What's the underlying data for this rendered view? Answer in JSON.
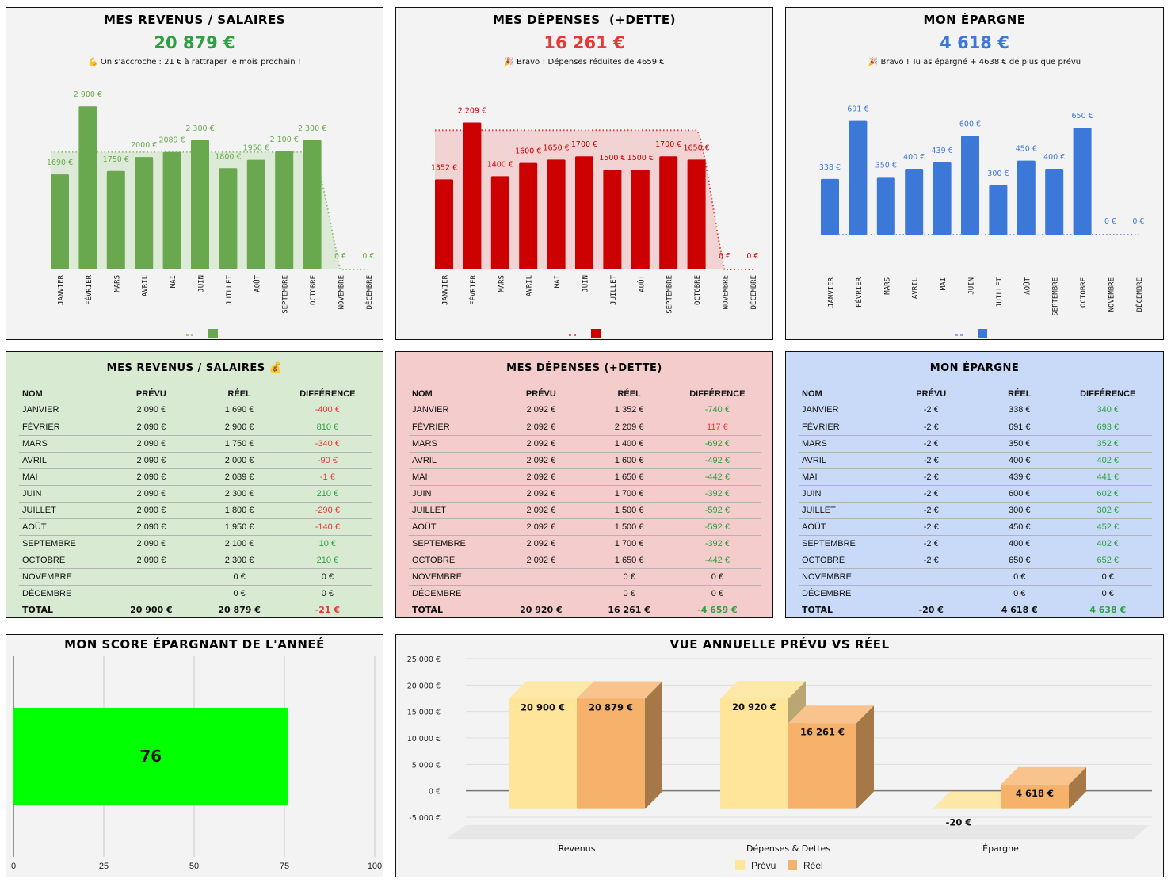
{
  "months": [
    "JANVIER",
    "FÉVRIER",
    "MARS",
    "AVRIL",
    "MAI",
    "JUIN",
    "JUILLET",
    "AOÛT",
    "SEPTEMBRE",
    "OCTOBRE",
    "NOVEMBRE",
    "DÉCEMBRE"
  ],
  "colors": {
    "income": "#6aa84f",
    "income_area": "#d9e8d2",
    "income_text": "#2ea043",
    "expense": "#cc0000",
    "expense_area": "#f1cccc",
    "expense_text": "#e53935",
    "savings": "#3c78d8",
    "savings_text": "#3c78d8",
    "score": "#00ff00",
    "planned": "#ffe599",
    "actual": "#f6b26b",
    "pos": "#2ea043",
    "neg": "#e53935",
    "tbl_income_bg": "#d9ead3",
    "tbl_expense_bg": "#f4cccc",
    "tbl_savings_bg": "#c9daf8"
  },
  "income_card": {
    "title": "MES REVENUS / SALAIRES",
    "total": "20 879 €",
    "message": "💪 On s'accroche : 21 € à rattraper le mois prochain !"
  },
  "expense_card": {
    "title": "MES DÉPENSES  (+DETTE)",
    "total": "16 261 €",
    "message": "🎉 Bravo ! Dépenses réduites de 4659 €"
  },
  "savings_card": {
    "title": "MON ÉPARGNE",
    "total": "4 618 €",
    "message": "🎉 Bravo ! Tu as épargné + 4638 € de plus que prévu"
  },
  "chart_data": [
    {
      "type": "bar",
      "title": "MES REVENUS / SALAIRES",
      "categories": [
        "JANVIER",
        "FÉVRIER",
        "MARS",
        "AVRIL",
        "MAI",
        "JUIN",
        "JUILLET",
        "AOÛT",
        "SEPTEMBRE",
        "OCTOBRE",
        "NOVEMBRE",
        "DÉCEMBRE"
      ],
      "series": [
        {
          "name": "Réel",
          "kind": "bar",
          "values": [
            1690,
            2900,
            1750,
            2000,
            2089,
            2300,
            1800,
            1950,
            2100,
            2300,
            0,
            0
          ]
        },
        {
          "name": "Prévu",
          "kind": "area-dotted",
          "values": [
            2090,
            2090,
            2090,
            2090,
            2090,
            2090,
            2090,
            2090,
            2090,
            2090,
            0,
            0
          ]
        }
      ],
      "labels": [
        "1690 €",
        "2 900 €",
        "1750 €",
        "2000 €",
        "2089 €",
        "2 300 €",
        "1800 €",
        "1950 €",
        "2 100 €",
        "2 300 €",
        "0 €",
        "0 €"
      ],
      "ylim": [
        0,
        3100
      ],
      "grid": false,
      "legend": "bottom"
    },
    {
      "type": "bar",
      "title": "MES DÉPENSES (+DETTE)",
      "categories": [
        "JANVIER",
        "FÉVRIER",
        "MARS",
        "AVRIL",
        "MAI",
        "JUIN",
        "JUILLET",
        "AOÛT",
        "SEPTEMBRE",
        "OCTOBRE",
        "NOVEMBRE",
        "DÉCEMBRE"
      ],
      "series": [
        {
          "name": "Réel",
          "kind": "bar",
          "values": [
            1352,
            2209,
            1400,
            1600,
            1650,
            1700,
            1500,
            1500,
            1700,
            1650,
            0,
            0
          ]
        },
        {
          "name": "Prévu",
          "kind": "area-dotted",
          "values": [
            2092,
            2092,
            2092,
            2092,
            2092,
            2092,
            2092,
            2092,
            2092,
            2092,
            0,
            0
          ]
        }
      ],
      "labels": [
        "1352 €",
        "2 209 €",
        "1400 €",
        "1600 €",
        "1650 €",
        "1700 €",
        "1500 €",
        "1500 €",
        "1700 €",
        "1650 €",
        "0 €",
        "0 €"
      ],
      "ylim": [
        0,
        2500
      ],
      "grid": false,
      "legend": "bottom"
    },
    {
      "type": "bar",
      "title": "MON ÉPARGNE",
      "categories": [
        "JANVIER",
        "FÉVRIER",
        "MARS",
        "AVRIL",
        "MAI",
        "JUIN",
        "JUILLET",
        "AOÛT",
        "SEPTEMBRE",
        "OCTOBRE",
        "NOVEMBRE",
        "DÉCEMBRE"
      ],
      "series": [
        {
          "name": "Réel",
          "kind": "bar",
          "values": [
            338,
            691,
            350,
            400,
            439,
            600,
            300,
            450,
            400,
            650,
            0,
            0
          ]
        },
        {
          "name": "Prévu",
          "kind": "line-dotted",
          "values": [
            -2,
            -2,
            -2,
            -2,
            -2,
            -2,
            -2,
            -2,
            -2,
            -2,
            0,
            0
          ]
        }
      ],
      "labels": [
        "338 €",
        "691 €",
        "350 €",
        "400 €",
        "439 €",
        "600 €",
        "300 €",
        "450 €",
        "400 €",
        "650 €",
        "0 €",
        "0 €"
      ],
      "ylim": [
        0,
        800
      ],
      "grid": false,
      "legend": "bottom"
    },
    {
      "type": "bar",
      "orientation": "horizontal",
      "title": "MON SCORE ÉPARGNANT DE L'ANNEÉ",
      "values": [
        76
      ],
      "value_label": "76",
      "xlim": [
        0,
        100
      ],
      "xticks": [
        "0",
        "25",
        "50",
        "75",
        "100"
      ],
      "grid": true
    },
    {
      "type": "bar",
      "style": "3d",
      "title": "VUE ANNUELLE PRÉVU VS RÉEL",
      "categories": [
        "Revenus",
        "Dépenses & Dettes",
        "Épargne"
      ],
      "series": [
        {
          "name": "Prévu",
          "values": [
            20900,
            20920,
            -20
          ],
          "labels": [
            "20 900 €",
            "20 920 €",
            "-20 €"
          ]
        },
        {
          "name": "Réel",
          "values": [
            20879,
            16261,
            4618
          ],
          "labels": [
            "20 879 €",
            "16 261 €",
            "4 618 €"
          ]
        }
      ],
      "ylim": [
        -5000,
        25000
      ],
      "yticks": [
        "25 000 €",
        "20 000 €",
        "15 000 €",
        "10 000 €",
        "5 000 €",
        "0 €",
        "-5 000 €"
      ],
      "grid": true,
      "legend": "bottom"
    }
  ],
  "tables": {
    "headers": [
      "NOM",
      "PRÉVU",
      "RÉEL",
      "DIFFÉRENCE"
    ],
    "income": {
      "title": "MES REVENUS / SALAIRES 💰",
      "rows": [
        [
          "JANVIER",
          "2 090 €",
          "1 690 €",
          "-400 €",
          "neg"
        ],
        [
          "FÉVRIER",
          "2 090 €",
          "2 900 €",
          "810 €",
          "pos"
        ],
        [
          "MARS",
          "2 090 €",
          "1 750 €",
          "-340 €",
          "neg"
        ],
        [
          "AVRIL",
          "2 090 €",
          "2 000 €",
          "-90 €",
          "neg"
        ],
        [
          "MAI",
          "2 090 €",
          "2 089 €",
          "-1 €",
          "neg"
        ],
        [
          "JUIN",
          "2 090 €",
          "2 300 €",
          "210 €",
          "pos"
        ],
        [
          "JUILLET",
          "2 090 €",
          "1 800 €",
          "-290 €",
          "neg"
        ],
        [
          "AOÛT",
          "2 090 €",
          "1 950 €",
          "-140 €",
          "neg"
        ],
        [
          "SEPTEMBRE",
          "2 090 €",
          "2 100 €",
          "10 €",
          "pos"
        ],
        [
          "OCTOBRE",
          "2 090 €",
          "2 300 €",
          "210 €",
          "pos"
        ],
        [
          "NOVEMBRE",
          "",
          "0 €",
          "0 €",
          ""
        ],
        [
          "DÉCEMBRE",
          "",
          "0 €",
          "0 €",
          ""
        ]
      ],
      "total": [
        "TOTAL",
        "20 900 €",
        "20 879 €",
        "-21 €",
        "neg"
      ]
    },
    "expense": {
      "title": "MES DÉPENSES (+DETTE)",
      "rows": [
        [
          "JANVIER",
          "2 092 €",
          "1 352 €",
          "-740 €",
          "pos"
        ],
        [
          "FÉVRIER",
          "2 092 €",
          "2 209 €",
          "117 €",
          "neg"
        ],
        [
          "MARS",
          "2 092 €",
          "1 400 €",
          "-692 €",
          "pos"
        ],
        [
          "AVRIL",
          "2 092 €",
          "1 600 €",
          "-492 €",
          "pos"
        ],
        [
          "MAI",
          "2 092 €",
          "1 650 €",
          "-442 €",
          "pos"
        ],
        [
          "JUIN",
          "2 092 €",
          "1 700 €",
          "-392 €",
          "pos"
        ],
        [
          "JUILLET",
          "2 092 €",
          "1 500 €",
          "-592 €",
          "pos"
        ],
        [
          "AOÛT",
          "2 092 €",
          "1 500 €",
          "-592 €",
          "pos"
        ],
        [
          "SEPTEMBRE",
          "2 092 €",
          "1 700 €",
          "-392 €",
          "pos"
        ],
        [
          "OCTOBRE",
          "2 092 €",
          "1 650 €",
          "-442 €",
          "pos"
        ],
        [
          "NOVEMBRE",
          "",
          "0 €",
          "0 €",
          ""
        ],
        [
          "DÉCEMBRE",
          "",
          "0 €",
          "0 €",
          ""
        ]
      ],
      "total": [
        "TOTAL",
        "20 920 €",
        "16 261 €",
        "-4 659 €",
        "pos"
      ]
    },
    "savings": {
      "title": "MON ÉPARGNE",
      "rows": [
        [
          "JANVIER",
          "-2 €",
          "338 €",
          "340 €",
          "pos"
        ],
        [
          "FÉVRIER",
          "-2 €",
          "691 €",
          "693 €",
          "pos"
        ],
        [
          "MARS",
          "-2 €",
          "350 €",
          "352 €",
          "pos"
        ],
        [
          "AVRIL",
          "-2 €",
          "400 €",
          "402 €",
          "pos"
        ],
        [
          "MAI",
          "-2 €",
          "439 €",
          "441 €",
          "pos"
        ],
        [
          "JUIN",
          "-2 €",
          "600 €",
          "602 €",
          "pos"
        ],
        [
          "JUILLET",
          "-2 €",
          "300 €",
          "302 €",
          "pos"
        ],
        [
          "AOÛT",
          "-2 €",
          "450 €",
          "452 €",
          "pos"
        ],
        [
          "SEPTEMBRE",
          "-2 €",
          "400 €",
          "402 €",
          "pos"
        ],
        [
          "OCTOBRE",
          "-2 €",
          "650 €",
          "652 €",
          "pos"
        ],
        [
          "NOVEMBRE",
          "",
          "0 €",
          "0 €",
          ""
        ],
        [
          "DÉCEMBRE",
          "",
          "0 €",
          "0 €",
          ""
        ]
      ],
      "total": [
        "TOTAL",
        "-20 €",
        "4 618 €",
        "4 638 €",
        "pos"
      ]
    }
  },
  "score_card": {
    "title": "MON SCORE ÉPARGNANT DE L'ANNEÉ"
  },
  "annual_card": {
    "title": "VUE ANNUELLE PRÉVU VS RÉEL",
    "legend": [
      "Prévu",
      "Réel"
    ]
  }
}
